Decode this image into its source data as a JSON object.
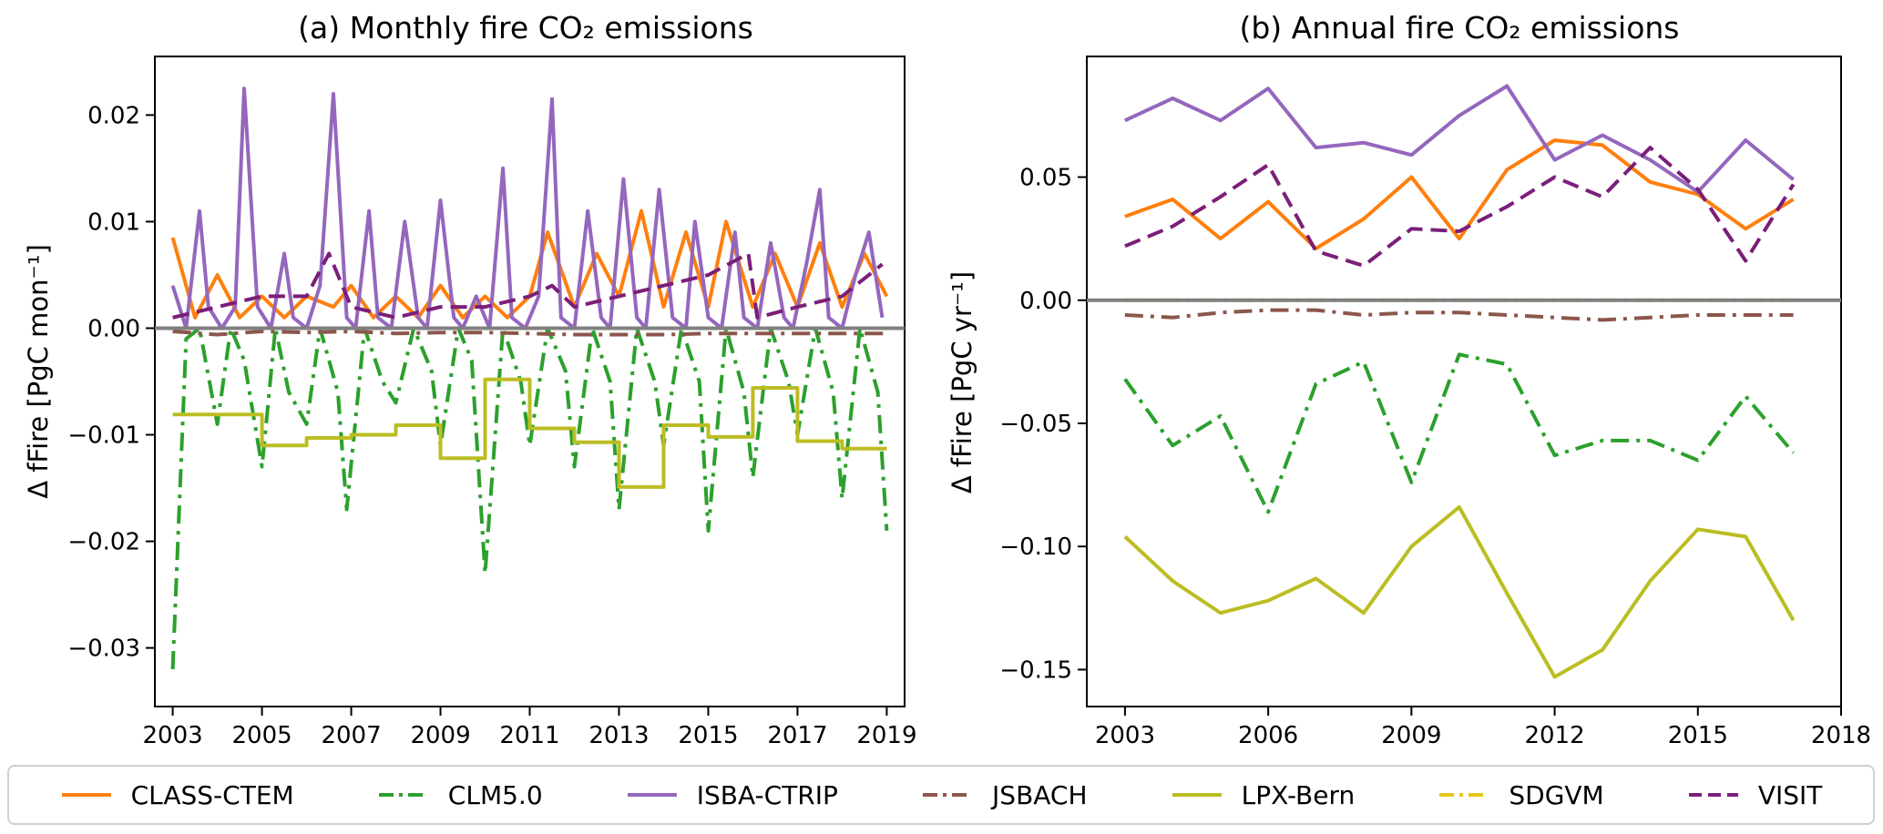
{
  "chart_data": [
    {
      "type": "line",
      "title": "(a) Monthly fire CO₂ emissions",
      "ylabel": "Δ fFire [PgC mon⁻¹]",
      "xlim": [
        2002.6,
        2019.4
      ],
      "ylim": [
        -0.0355,
        0.0255
      ],
      "xticks": [
        2003,
        2005,
        2007,
        2009,
        2011,
        2013,
        2015,
        2017,
        2019
      ],
      "yticks": [
        -0.03,
        -0.02,
        -0.01,
        0.0,
        0.01,
        0.02
      ],
      "ytick_labels": [
        "−0.03",
        "−0.02",
        "−0.01",
        "0.00",
        "0.01",
        "0.02"
      ],
      "hline": 0,
      "series_note": "monthly values (x = decimal year)",
      "series": [
        {
          "name": "CLASS-CTEM",
          "x": [
            2003.0,
            2003.5,
            2004.0,
            2004.5,
            2005.0,
            2005.5,
            2006.0,
            2006.6,
            2007.0,
            2007.5,
            2008.0,
            2008.5,
            2009.0,
            2009.5,
            2010.0,
            2010.5,
            2011.0,
            2011.4,
            2012.0,
            2012.5,
            2013.0,
            2013.5,
            2014.0,
            2014.5,
            2015.0,
            2015.4,
            2016.0,
            2016.5,
            2017.0,
            2017.5,
            2018.0,
            2018.5,
            2019.0
          ],
          "values": [
            0.0085,
            0.001,
            0.005,
            0.001,
            0.003,
            0.001,
            0.003,
            0.002,
            0.004,
            0.001,
            0.003,
            0.001,
            0.004,
            0.001,
            0.003,
            0.001,
            0.003,
            0.009,
            0.002,
            0.007,
            0.003,
            0.011,
            0.002,
            0.009,
            0.002,
            0.01,
            0.002,
            0.007,
            0.002,
            0.008,
            0.002,
            0.007,
            0.003
          ]
        },
        {
          "name": "CLM5.0",
          "x": [
            2003.0,
            2003.3,
            2003.6,
            2004.0,
            2004.3,
            2004.6,
            2005.0,
            2005.3,
            2005.6,
            2006.0,
            2006.3,
            2006.7,
            2006.9,
            2007.3,
            2007.7,
            2008.0,
            2008.4,
            2008.8,
            2009.0,
            2009.4,
            2009.7,
            2010.0,
            2010.4,
            2010.8,
            2011.0,
            2011.4,
            2011.8,
            2012.0,
            2012.4,
            2012.8,
            2013.0,
            2013.4,
            2013.8,
            2014.0,
            2014.4,
            2014.8,
            2015.0,
            2015.4,
            2015.8,
            2016.0,
            2016.4,
            2016.8,
            2017.0,
            2017.4,
            2017.8,
            2018.0,
            2018.4,
            2018.8,
            2019.0
          ],
          "values": [
            -0.032,
            -0.001,
            0.0,
            -0.009,
            0.0,
            -0.003,
            -0.013,
            0.0,
            -0.006,
            -0.009,
            0.0,
            -0.006,
            -0.017,
            0.0,
            -0.005,
            -0.007,
            0.0,
            -0.004,
            -0.011,
            0.0,
            -0.003,
            -0.023,
            0.0,
            -0.005,
            -0.011,
            0.0,
            -0.004,
            -0.013,
            0.0,
            -0.005,
            -0.017,
            0.0,
            -0.005,
            -0.011,
            0.0,
            -0.005,
            -0.019,
            0.0,
            -0.006,
            -0.014,
            0.0,
            -0.005,
            -0.01,
            0.0,
            -0.006,
            -0.016,
            0.0,
            -0.006,
            -0.019
          ]
        },
        {
          "name": "ISBA-CTRIP",
          "x": [
            2003.0,
            2003.3,
            2003.6,
            2003.8,
            2004.1,
            2004.4,
            2004.6,
            2004.9,
            2005.2,
            2005.5,
            2005.7,
            2006.0,
            2006.3,
            2006.6,
            2006.9,
            2007.1,
            2007.4,
            2007.6,
            2007.9,
            2008.2,
            2008.5,
            2008.7,
            2009.0,
            2009.3,
            2009.5,
            2009.8,
            2010.1,
            2010.4,
            2010.6,
            2010.9,
            2011.2,
            2011.5,
            2011.7,
            2012.0,
            2012.3,
            2012.6,
            2012.8,
            2013.1,
            2013.4,
            2013.6,
            2013.9,
            2014.2,
            2014.5,
            2014.7,
            2015.0,
            2015.3,
            2015.6,
            2015.8,
            2016.1,
            2016.4,
            2016.7,
            2016.9,
            2017.2,
            2017.5,
            2017.7,
            2018.0,
            2018.3,
            2018.6,
            2018.9
          ],
          "values": [
            0.004,
            0.0,
            0.011,
            0.002,
            0.0,
            0.002,
            0.0225,
            0.002,
            0.0,
            0.007,
            0.001,
            0.0,
            0.004,
            0.022,
            0.001,
            0.0,
            0.011,
            0.001,
            0.0,
            0.01,
            0.001,
            0.0,
            0.012,
            0.001,
            0.0,
            0.003,
            0.0,
            0.015,
            0.001,
            0.0,
            0.003,
            0.0215,
            0.001,
            0.0,
            0.011,
            0.001,
            0.0,
            0.014,
            0.001,
            0.0,
            0.013,
            0.001,
            0.0,
            0.01,
            0.001,
            0.0,
            0.009,
            0.001,
            0.0,
            0.008,
            0.001,
            0.0,
            0.006,
            0.013,
            0.001,
            0.0,
            0.005,
            0.009,
            0.001
          ]
        },
        {
          "name": "JSBACH",
          "x": [
            2003.0,
            2004.0,
            2005.0,
            2006.0,
            2007.0,
            2008.0,
            2009.0,
            2010.0,
            2011.0,
            2012.0,
            2013.0,
            2014.0,
            2015.0,
            2016.0,
            2017.0,
            2018.0,
            2019.0
          ],
          "values": [
            -0.0003,
            -0.0006,
            -0.0003,
            -0.0004,
            -0.0003,
            -0.0005,
            -0.0004,
            -0.0004,
            -0.0005,
            -0.0006,
            -0.0006,
            -0.0006,
            -0.0005,
            -0.0005,
            -0.0005,
            -0.0005,
            -0.0005
          ]
        },
        {
          "name": "LPX-Bern",
          "x": [
            2003.0,
            2004.0,
            2004.0,
            2005.0,
            2005.0,
            2006.0,
            2006.0,
            2007.0,
            2007.0,
            2008.0,
            2008.0,
            2009.0,
            2009.0,
            2010.0,
            2010.0,
            2011.0,
            2011.0,
            2012.0,
            2012.0,
            2013.0,
            2013.0,
            2014.0,
            2014.0,
            2015.0,
            2015.0,
            2016.0,
            2016.0,
            2017.0,
            2017.0,
            2018.0,
            2018.0,
            2019.0
          ],
          "values": [
            -0.0081,
            -0.0081,
            -0.0081,
            -0.0081,
            -0.011,
            -0.011,
            -0.0103,
            -0.0103,
            -0.01,
            -0.01,
            -0.0091,
            -0.0091,
            -0.0122,
            -0.0122,
            -0.0048,
            -0.0048,
            -0.0094,
            -0.0094,
            -0.0107,
            -0.0107,
            -0.0149,
            -0.0149,
            -0.0091,
            -0.0091,
            -0.0102,
            -0.0102,
            -0.0056,
            -0.0056,
            -0.0106,
            -0.0106,
            -0.0113,
            -0.0113
          ]
        },
        {
          "name": "SDGVM",
          "x": [
            2003.0,
            2019.0
          ],
          "values": [
            0.0,
            0.0
          ]
        },
        {
          "name": "VISIT",
          "x": [
            2003.0,
            2004.0,
            2005.0,
            2006.0,
            2006.5,
            2007.0,
            2008.0,
            2009.0,
            2010.0,
            2011.0,
            2011.5,
            2012.0,
            2013.0,
            2014.0,
            2015.0,
            2015.9,
            2016.1,
            2017.0,
            2018.0,
            2018.9
          ],
          "values": [
            0.001,
            0.002,
            0.003,
            0.003,
            0.007,
            0.002,
            0.001,
            0.002,
            0.002,
            0.003,
            0.004,
            0.002,
            0.003,
            0.004,
            0.005,
            0.007,
            0.001,
            0.002,
            0.003,
            0.006
          ]
        }
      ]
    },
    {
      "type": "line",
      "title": "(b) Annual fire CO₂ emissions",
      "ylabel": "Δ  fFire [PgC yr⁻¹]",
      "xlim": [
        2002.2,
        2018.0
      ],
      "ylim": [
        -0.165,
        0.099
      ],
      "xticks": [
        2003,
        2006,
        2009,
        2012,
        2015,
        2018
      ],
      "yticks": [
        -0.15,
        -0.1,
        -0.05,
        0.0,
        0.05
      ],
      "ytick_labels": [
        "−0.15",
        "−0.10",
        "−0.05",
        "0.00",
        "0.05"
      ],
      "hline": 0,
      "categories": [
        2003,
        2004,
        2005,
        2006,
        2007,
        2008,
        2009,
        2010,
        2011,
        2012,
        2013,
        2014,
        2015,
        2016,
        2017
      ],
      "series": [
        {
          "name": "CLASS-CTEM",
          "values": [
            0.034,
            0.041,
            0.025,
            0.04,
            0.021,
            0.033,
            0.05,
            0.025,
            0.053,
            0.065,
            0.063,
            0.048,
            0.043,
            0.029,
            0.041
          ]
        },
        {
          "name": "CLM5.0",
          "values": [
            -0.032,
            -0.059,
            -0.047,
            -0.086,
            -0.034,
            -0.025,
            -0.074,
            -0.022,
            -0.026,
            -0.063,
            -0.057,
            -0.057,
            -0.065,
            -0.039,
            -0.062
          ]
        },
        {
          "name": "ISBA-CTRIP",
          "values": [
            0.073,
            0.082,
            0.073,
            0.086,
            0.062,
            0.064,
            0.059,
            0.075,
            0.087,
            0.057,
            0.067,
            0.057,
            0.044,
            0.065,
            0.049
          ]
        },
        {
          "name": "JSBACH",
          "values": [
            -0.006,
            -0.007,
            -0.005,
            -0.004,
            -0.004,
            -0.006,
            -0.005,
            -0.005,
            -0.006,
            -0.007,
            -0.008,
            -0.007,
            -0.006,
            -0.006,
            -0.006
          ]
        },
        {
          "name": "LPX-Bern",
          "values": [
            -0.096,
            -0.114,
            -0.127,
            -0.122,
            -0.113,
            -0.127,
            -0.1,
            -0.084,
            -0.119,
            -0.153,
            -0.142,
            -0.114,
            -0.093,
            -0.096,
            -0.13
          ]
        },
        {
          "name": "SDGVM",
          "values": [
            0,
            0,
            0,
            0,
            0,
            0,
            0,
            0,
            0,
            0,
            0,
            0,
            0,
            0,
            0
          ]
        },
        {
          "name": "VISIT",
          "values": [
            0.022,
            0.03,
            0.042,
            0.055,
            0.02,
            0.014,
            0.029,
            0.028,
            0.038,
            0.05,
            0.042,
            0.062,
            0.045,
            0.016,
            0.047
          ]
        }
      ]
    }
  ],
  "legend": {
    "placement": "bottom",
    "entries": [
      {
        "name": "CLASS-CTEM",
        "color": "#ff7f0e",
        "dash": "solid"
      },
      {
        "name": "CLM5.0",
        "color": "#2ca02c",
        "dash": "dashdot"
      },
      {
        "name": "ISBA-CTRIP",
        "color": "#9467bd",
        "dash": "solid"
      },
      {
        "name": "JSBACH",
        "color": "#8c564b",
        "dash": "dashdot"
      },
      {
        "name": "LPX-Bern",
        "color": "#bcbd22",
        "dash": "solid"
      },
      {
        "name": "SDGVM",
        "color": "#e5c61a",
        "dash": "dashdot"
      },
      {
        "name": "VISIT",
        "color": "#7b1e7a",
        "dash": "dashed"
      }
    ]
  },
  "colors": {
    "zero_line": "#808080",
    "axes": "#000000"
  }
}
